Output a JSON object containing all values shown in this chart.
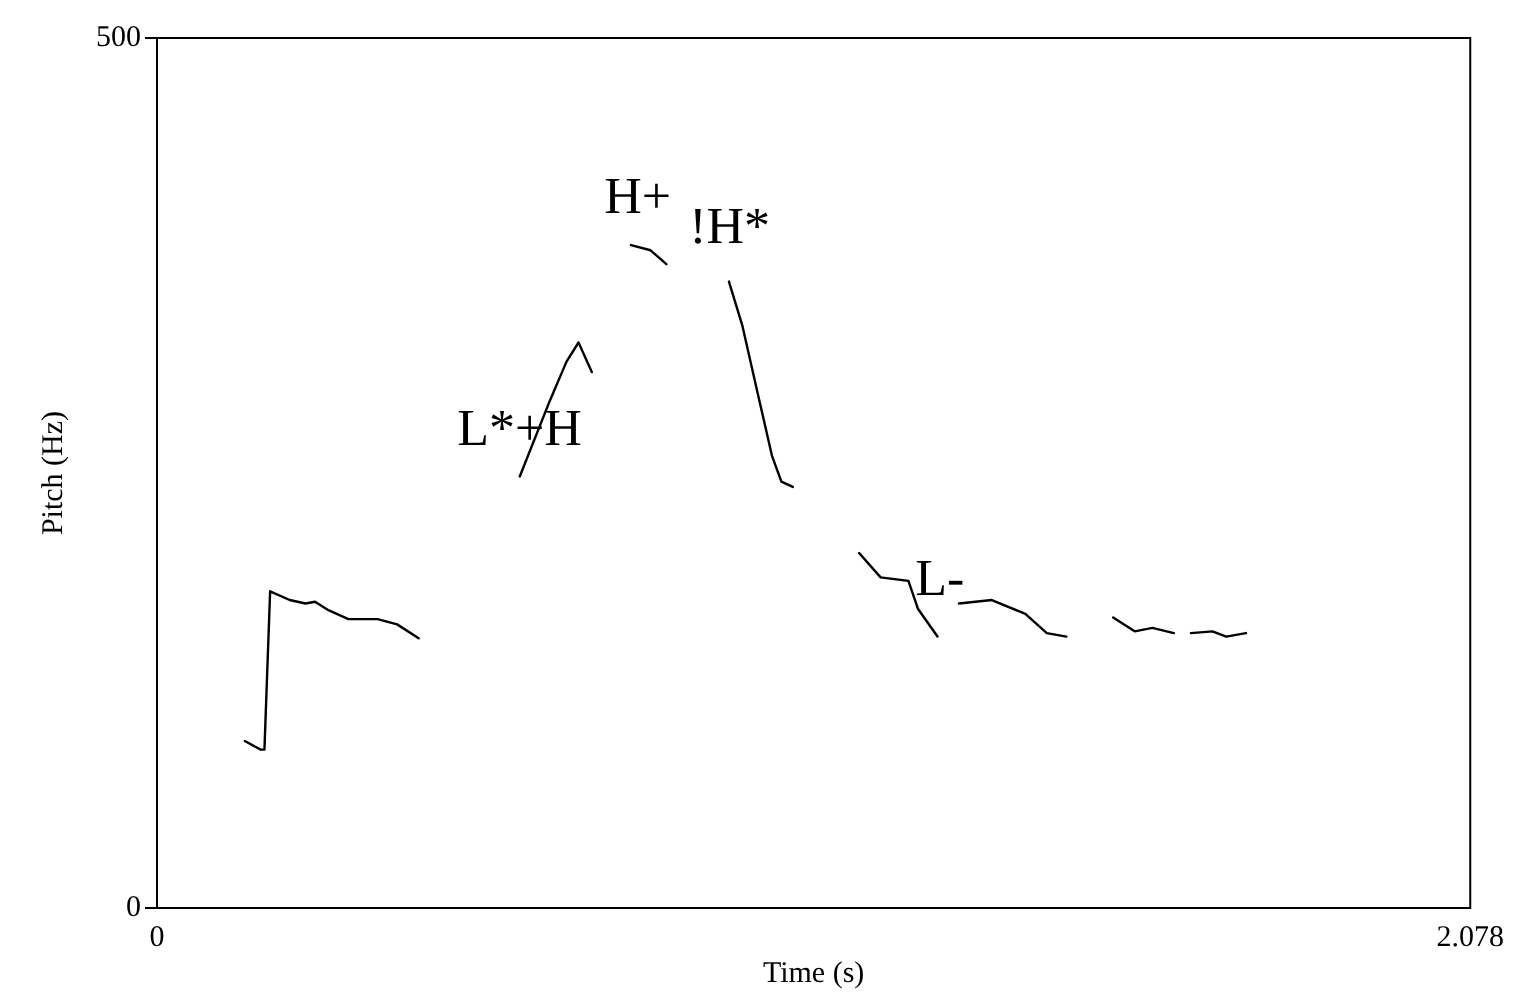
{
  "chart_data": {
    "type": "line",
    "xlabel": "Time (s)",
    "ylabel": "Pitch (Hz)",
    "xlim": [
      0,
      2.078
    ],
    "xticks": [
      0,
      2.078
    ],
    "ylim": [
      0,
      500
    ],
    "yticks": [
      0,
      500
    ],
    "grid": false,
    "legend": false,
    "marker": "none",
    "line_style": "solid",
    "series": [
      {
        "color": "#000000",
        "x": [
          0.139,
          0.164,
          0.17,
          0.179,
          0.21,
          0.235,
          0.25,
          0.272,
          0.303,
          0.349,
          0.38,
          0.414,
          0.5,
          0.574,
          0.621,
          0.648,
          0.667,
          0.688,
          0.72,
          0.75,
          0.781,
          0.806,
          0.85,
          0.905,
          0.926,
          0.951,
          0.973,
          0.988,
          1.006,
          1.06,
          1.111,
          1.145,
          1.189,
          1.204,
          1.235,
          1.25,
          1.269,
          1.321,
          1.374,
          1.408,
          1.439,
          1.48,
          1.513,
          1.547,
          1.575,
          1.609,
          1.62,
          1.636,
          1.67,
          1.692,
          1.723
        ],
        "values": [
          96,
          91,
          91,
          182,
          177,
          175,
          176,
          171,
          166,
          166,
          163,
          155,
          null,
          248,
          291,
          314,
          325,
          308,
          null,
          381,
          378,
          370,
          null,
          360,
          335,
          295,
          260,
          245,
          242,
          null,
          204,
          190,
          188,
          172,
          156,
          null,
          175,
          177,
          169,
          158,
          156,
          null,
          167,
          159,
          161,
          158,
          null,
          158,
          159,
          156,
          158
        ]
      }
    ],
    "annotations": [
      "L*+H",
      "H+",
      "!H*",
      "L-"
    ]
  }
}
